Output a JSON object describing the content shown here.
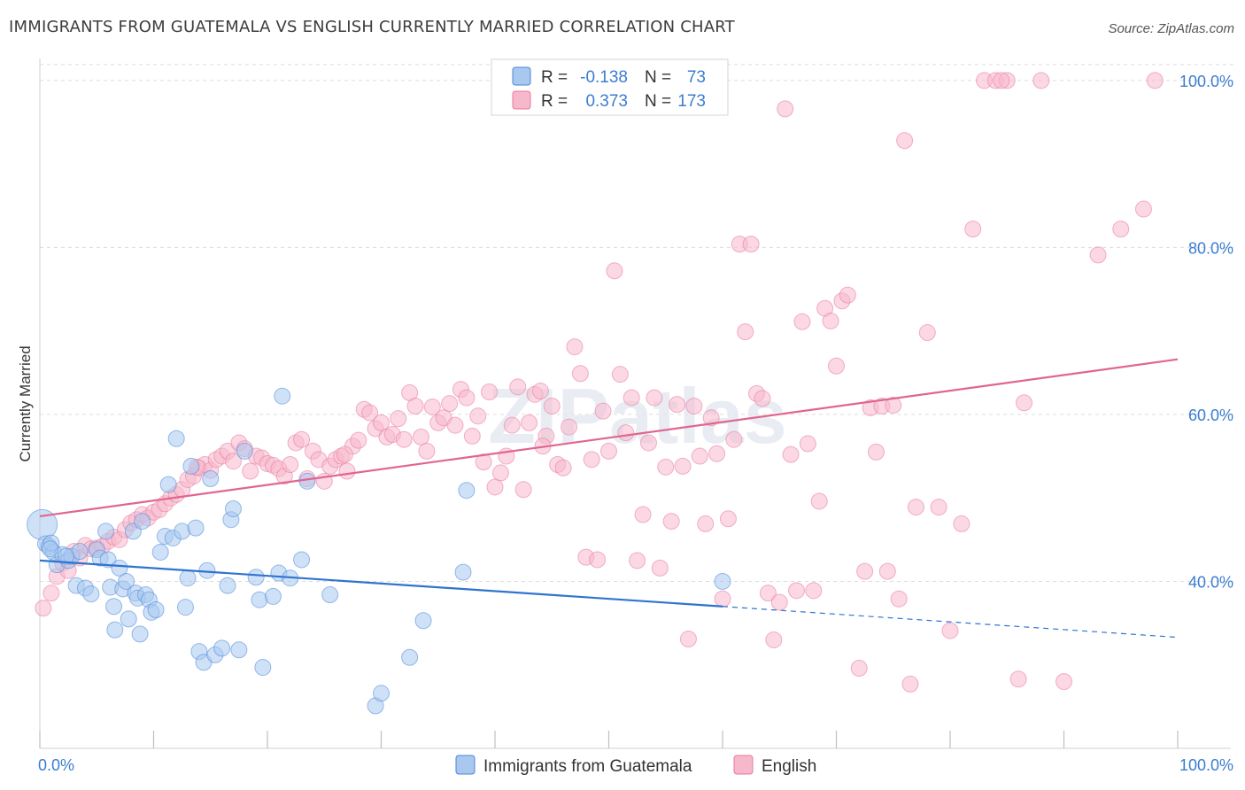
{
  "title": "IMMIGRANTS FROM GUATEMALA VS ENGLISH CURRENTLY MARRIED CORRELATION CHART",
  "source": "Source: ZipAtlas.com",
  "watermark": "ZIPatlas",
  "colors": {
    "blue": "#4a86d8",
    "pink": "#e8799c",
    "blue_fill": "#a8c8f0",
    "pink_fill": "#f7b8cc",
    "axis_text": "#3b7dd0"
  },
  "legend_top": [
    {
      "series": "Immigrants from Guatemala",
      "r_label": "R =",
      "r_value": "-0.138",
      "n_label": "N =",
      "n_value": "73",
      "color": "#a8c8f0"
    },
    {
      "series": "English",
      "r_label": "R =",
      "r_value": "0.373",
      "n_label": "N =",
      "n_value": "173",
      "color": "#f7b8cc"
    }
  ],
  "legend_bottom": [
    {
      "label": "Immigrants from Guatemala",
      "color": "#a8c8f0"
    },
    {
      "label": "English",
      "color": "#f7b8cc"
    }
  ],
  "chart_data": {
    "type": "scatter",
    "title": "IMMIGRANTS FROM GUATEMALA VS ENGLISH CURRENTLY MARRIED CORRELATION CHART",
    "xlabel": "",
    "ylabel": "Currently Married",
    "xlim": [
      0,
      100
    ],
    "ylim": [
      20,
      102
    ],
    "x_tick_labels": [
      {
        "value": 0,
        "label": "0.0%"
      },
      {
        "value": 100,
        "label": "100.0%"
      }
    ],
    "y_tick_labels": [
      {
        "value": 40,
        "label": "40.0%"
      },
      {
        "value": 60,
        "label": "60.0%"
      },
      {
        "value": 80,
        "label": "80.0%"
      },
      {
        "value": 100,
        "label": "100.0%"
      }
    ],
    "grid": true,
    "legend_position": "top-center",
    "series": [
      {
        "name": "Immigrants from Guatemala",
        "color": "#4a86d8",
        "trend": {
          "x": [
            0,
            60
          ],
          "y": [
            42.5,
            37.0
          ],
          "dashed_x": [
            60,
            100
          ],
          "dashed_y": [
            37.0,
            33.3
          ]
        },
        "points": [
          [
            0.2,
            46.8
          ],
          [
            0.5,
            44.5
          ],
          [
            0.8,
            44.2
          ],
          [
            1.2,
            43.5
          ],
          [
            1.5,
            42.0
          ],
          [
            2.0,
            43.2
          ],
          [
            2.5,
            42.5
          ],
          [
            2.8,
            43.0
          ],
          [
            3.2,
            39.5
          ],
          [
            3.5,
            43.6
          ],
          [
            4.0,
            39.2
          ],
          [
            4.5,
            38.5
          ],
          [
            5.0,
            43.8
          ],
          [
            5.3,
            42.8
          ],
          [
            5.8,
            46.0
          ],
          [
            6.0,
            42.6
          ],
          [
            6.2,
            39.3
          ],
          [
            6.5,
            37.0
          ],
          [
            6.6,
            34.2
          ],
          [
            7.0,
            41.6
          ],
          [
            7.3,
            39.1
          ],
          [
            7.6,
            40.0
          ],
          [
            7.8,
            35.5
          ],
          [
            8.2,
            46.0
          ],
          [
            8.4,
            38.6
          ],
          [
            8.6,
            38.0
          ],
          [
            8.8,
            33.7
          ],
          [
            9.0,
            47.2
          ],
          [
            9.3,
            38.4
          ],
          [
            9.6,
            37.8
          ],
          [
            9.8,
            36.3
          ],
          [
            10.2,
            36.6
          ],
          [
            10.6,
            43.5
          ],
          [
            11.0,
            45.4
          ],
          [
            11.3,
            51.6
          ],
          [
            11.7,
            45.2
          ],
          [
            12.0,
            57.1
          ],
          [
            12.5,
            46.0
          ],
          [
            12.8,
            36.9
          ],
          [
            13.0,
            40.4
          ],
          [
            13.3,
            53.8
          ],
          [
            13.7,
            46.4
          ],
          [
            14.0,
            31.6
          ],
          [
            14.4,
            30.3
          ],
          [
            14.7,
            41.3
          ],
          [
            15.0,
            52.3
          ],
          [
            15.4,
            31.2
          ],
          [
            16.0,
            32.0
          ],
          [
            16.5,
            39.5
          ],
          [
            16.8,
            47.4
          ],
          [
            17.0,
            48.7
          ],
          [
            17.5,
            31.8
          ],
          [
            18.0,
            55.6
          ],
          [
            19.0,
            40.5
          ],
          [
            19.3,
            37.8
          ],
          [
            19.6,
            29.7
          ],
          [
            20.5,
            38.2
          ],
          [
            21.0,
            41.0
          ],
          [
            21.3,
            62.2
          ],
          [
            22.0,
            40.4
          ],
          [
            23.0,
            42.6
          ],
          [
            23.5,
            52.0
          ],
          [
            25.5,
            38.4
          ],
          [
            29.5,
            25.1
          ],
          [
            30.0,
            26.6
          ],
          [
            32.5,
            30.9
          ],
          [
            33.7,
            35.3
          ],
          [
            37.2,
            41.1
          ],
          [
            37.5,
            50.9
          ],
          [
            60.0,
            40.0
          ],
          [
            1.0,
            44.6
          ],
          [
            2.3,
            43.0
          ],
          [
            0.9,
            43.9
          ]
        ]
      },
      {
        "name": "English",
        "color": "#e8799c",
        "trend": {
          "x": [
            0,
            100
          ],
          "y": [
            47.8,
            66.6
          ]
        },
        "points": [
          [
            0.3,
            36.8
          ],
          [
            1.0,
            38.6
          ],
          [
            1.5,
            40.6
          ],
          [
            2.0,
            42.2
          ],
          [
            2.5,
            41.3
          ],
          [
            3.0,
            43.6
          ],
          [
            3.5,
            42.8
          ],
          [
            4.0,
            44.3
          ],
          [
            4.5,
            43.9
          ],
          [
            5.0,
            44.0
          ],
          [
            5.5,
            44.2
          ],
          [
            6.0,
            44.8
          ],
          [
            6.5,
            45.3
          ],
          [
            7.0,
            45.0
          ],
          [
            7.5,
            46.2
          ],
          [
            8.0,
            47.0
          ],
          [
            8.5,
            47.4
          ],
          [
            9.0,
            48.0
          ],
          [
            9.5,
            47.6
          ],
          [
            10.0,
            48.3
          ],
          [
            10.5,
            48.6
          ],
          [
            11.0,
            49.3
          ],
          [
            11.5,
            50.0
          ],
          [
            12.0,
            50.4
          ],
          [
            12.5,
            51.0
          ],
          [
            13.0,
            52.2
          ],
          [
            13.5,
            52.6
          ],
          [
            14.0,
            53.6
          ],
          [
            14.5,
            54.0
          ],
          [
            15.0,
            53.3
          ],
          [
            15.5,
            54.6
          ],
          [
            16.0,
            55.0
          ],
          [
            16.5,
            55.6
          ],
          [
            17.0,
            54.4
          ],
          [
            17.5,
            56.6
          ],
          [
            18.0,
            55.9
          ],
          [
            18.5,
            53.2
          ],
          [
            19.0,
            55.0
          ],
          [
            19.5,
            54.8
          ],
          [
            20.0,
            54.1
          ],
          [
            20.5,
            53.9
          ],
          [
            21.0,
            53.5
          ],
          [
            21.5,
            52.6
          ],
          [
            22.0,
            54.0
          ],
          [
            22.5,
            56.6
          ],
          [
            23.0,
            57.0
          ],
          [
            23.5,
            52.3
          ],
          [
            24.0,
            55.6
          ],
          [
            24.5,
            54.6
          ],
          [
            25.0,
            52.0
          ],
          [
            25.5,
            53.8
          ],
          [
            26.0,
            54.6
          ],
          [
            26.5,
            55.0
          ],
          [
            27.0,
            53.2
          ],
          [
            27.5,
            56.2
          ],
          [
            28.0,
            56.9
          ],
          [
            28.5,
            60.6
          ],
          [
            29.0,
            60.2
          ],
          [
            29.5,
            58.3
          ],
          [
            30.0,
            59.0
          ],
          [
            30.5,
            57.3
          ],
          [
            31.0,
            57.6
          ],
          [
            31.5,
            59.5
          ],
          [
            32.0,
            57.0
          ],
          [
            32.5,
            62.6
          ],
          [
            33.0,
            61.0
          ],
          [
            33.5,
            57.3
          ],
          [
            34.0,
            55.6
          ],
          [
            34.5,
            60.9
          ],
          [
            35.0,
            59.0
          ],
          [
            35.5,
            59.6
          ],
          [
            36.0,
            61.3
          ],
          [
            36.5,
            58.7
          ],
          [
            37.0,
            63.0
          ],
          [
            37.5,
            62.0
          ],
          [
            38.0,
            57.4
          ],
          [
            38.5,
            59.8
          ],
          [
            39.0,
            54.3
          ],
          [
            39.5,
            62.7
          ],
          [
            40.0,
            51.3
          ],
          [
            40.5,
            53.0
          ],
          [
            41.0,
            55.0
          ],
          [
            41.5,
            58.7
          ],
          [
            42.0,
            63.3
          ],
          [
            42.5,
            51.0
          ],
          [
            43.0,
            59.0
          ],
          [
            43.5,
            62.4
          ],
          [
            44.0,
            62.8
          ],
          [
            44.5,
            57.4
          ],
          [
            45.0,
            61.0
          ],
          [
            45.5,
            54.0
          ],
          [
            46.0,
            53.6
          ],
          [
            46.5,
            58.5
          ],
          [
            47.0,
            68.1
          ],
          [
            47.5,
            64.9
          ],
          [
            48.0,
            42.9
          ],
          [
            48.5,
            54.6
          ],
          [
            49.0,
            42.6
          ],
          [
            49.5,
            60.4
          ],
          [
            50.0,
            55.6
          ],
          [
            50.5,
            77.2
          ],
          [
            51.0,
            64.8
          ],
          [
            51.5,
            57.8
          ],
          [
            52.0,
            62.0
          ],
          [
            52.5,
            42.5
          ],
          [
            53.0,
            48.0
          ],
          [
            53.5,
            56.6
          ],
          [
            54.0,
            62.0
          ],
          [
            54.5,
            41.6
          ],
          [
            55.0,
            53.7
          ],
          [
            55.5,
            47.2
          ],
          [
            56.0,
            61.2
          ],
          [
            56.5,
            53.8
          ],
          [
            57.0,
            33.1
          ],
          [
            57.5,
            61.0
          ],
          [
            58.0,
            55.0
          ],
          [
            58.5,
            46.9
          ],
          [
            59.0,
            59.6
          ],
          [
            59.5,
            55.3
          ],
          [
            60.0,
            37.9
          ],
          [
            60.5,
            47.5
          ],
          [
            61.0,
            57.0
          ],
          [
            61.5,
            80.4
          ],
          [
            62.0,
            69.9
          ],
          [
            62.5,
            80.4
          ],
          [
            63.0,
            62.5
          ],
          [
            63.5,
            61.9
          ],
          [
            64.0,
            38.6
          ],
          [
            64.5,
            33.0
          ],
          [
            65.0,
            37.5
          ],
          [
            65.5,
            96.6
          ],
          [
            66.0,
            55.2
          ],
          [
            66.5,
            38.9
          ],
          [
            67.0,
            71.1
          ],
          [
            67.5,
            56.5
          ],
          [
            68.0,
            38.9
          ],
          [
            68.5,
            49.6
          ],
          [
            69.0,
            72.7
          ],
          [
            69.5,
            71.2
          ],
          [
            70.0,
            65.8
          ],
          [
            70.5,
            73.6
          ],
          [
            71.0,
            74.3
          ],
          [
            72.0,
            29.6
          ],
          [
            72.5,
            41.2
          ],
          [
            73.0,
            60.8
          ],
          [
            73.5,
            55.5
          ],
          [
            74.0,
            61.0
          ],
          [
            74.5,
            41.2
          ],
          [
            75.0,
            61.1
          ],
          [
            75.5,
            37.9
          ],
          [
            76.0,
            92.8
          ],
          [
            76.5,
            27.7
          ],
          [
            77.0,
            48.9
          ],
          [
            78.0,
            69.8
          ],
          [
            79.0,
            48.9
          ],
          [
            80.0,
            34.1
          ],
          [
            81.0,
            46.9
          ],
          [
            82.0,
            82.2
          ],
          [
            83.0,
            100.0
          ],
          [
            84.0,
            100.0
          ],
          [
            85.0,
            100.0
          ],
          [
            86.0,
            28.3
          ],
          [
            86.5,
            61.4
          ],
          [
            88.0,
            100.0
          ],
          [
            93.0,
            79.1
          ],
          [
            95.0,
            82.2
          ],
          [
            97.0,
            84.6
          ],
          [
            98.0,
            100.0
          ],
          [
            84.5,
            100.0
          ],
          [
            90.0,
            28.0
          ],
          [
            44.2,
            56.2
          ],
          [
            26.8,
            55.2
          ],
          [
            13.8,
            53.7
          ]
        ]
      }
    ]
  }
}
